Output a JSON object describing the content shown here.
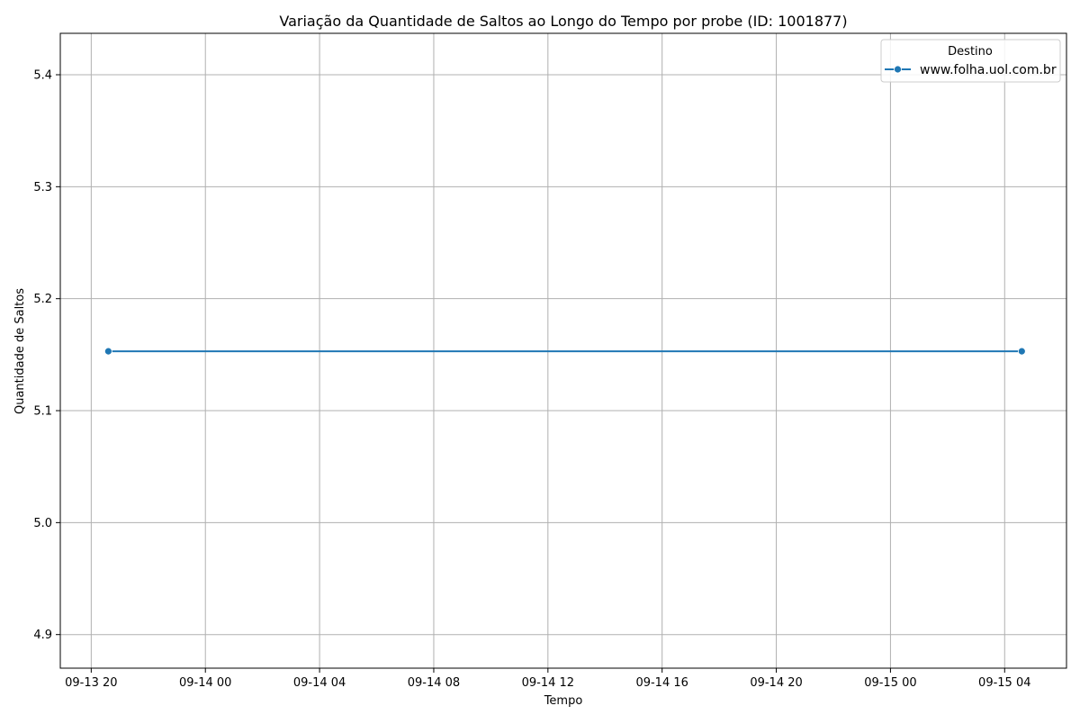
{
  "chart_data": {
    "type": "line",
    "title": "Variação da Quantidade de Saltos ao Longo do Tempo por probe (ID: 1001877)",
    "xlabel": "Tempo",
    "ylabel": "Quantidade de Saltos",
    "x_type": "datetime",
    "xlim": [
      "2024-09-13T18:55",
      "2024-09-15T06:10"
    ],
    "ylim": [
      4.87,
      5.437
    ],
    "x_ticks": [
      {
        "value": "2024-09-13T20:00",
        "label": "09-13 20"
      },
      {
        "value": "2024-09-14T00:00",
        "label": "09-14 00"
      },
      {
        "value": "2024-09-14T04:00",
        "label": "09-14 04"
      },
      {
        "value": "2024-09-14T08:00",
        "label": "09-14 08"
      },
      {
        "value": "2024-09-14T12:00",
        "label": "09-14 12"
      },
      {
        "value": "2024-09-14T16:00",
        "label": "09-14 16"
      },
      {
        "value": "2024-09-14T20:00",
        "label": "09-14 20"
      },
      {
        "value": "2024-09-15T00:00",
        "label": "09-15 00"
      },
      {
        "value": "2024-09-15T04:00",
        "label": "09-15 04"
      }
    ],
    "y_ticks": [
      {
        "value": 4.9,
        "label": "4.9"
      },
      {
        "value": 5.0,
        "label": "5.0"
      },
      {
        "value": 5.1,
        "label": "5.1"
      },
      {
        "value": 5.2,
        "label": "5.2"
      },
      {
        "value": 5.3,
        "label": "5.3"
      },
      {
        "value": 5.4,
        "label": "5.4"
      }
    ],
    "grid": true,
    "legend": {
      "title": "Destino",
      "position": "top-right"
    },
    "series": [
      {
        "name": "www.folha.uol.com.br",
        "color": "#1f77b4",
        "marker": "circle",
        "points": [
          {
            "x": "2024-09-13T20:36",
            "y": 5.153
          },
          {
            "x": "2024-09-15T04:36",
            "y": 5.153
          }
        ]
      }
    ]
  }
}
